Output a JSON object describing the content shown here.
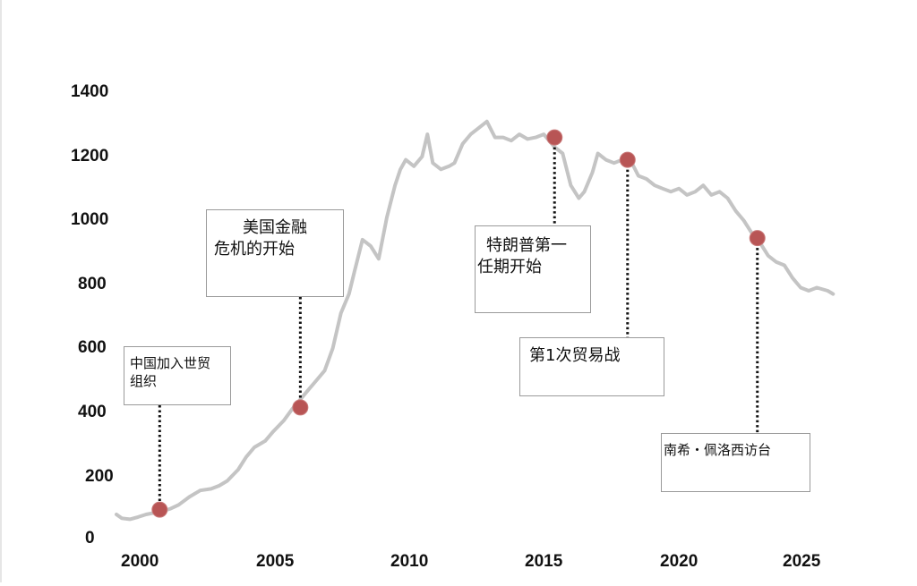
{
  "chart_data": {
    "type": "line",
    "title": "",
    "xlabel": "",
    "ylabel": "",
    "xlim": [
      1999.5,
      2026.0
    ],
    "ylim": [
      0,
      1400
    ],
    "x_ticks": [
      "2000",
      "2005",
      "2010",
      "2015",
      "2020",
      "2025"
    ],
    "y_ticks": [
      "0",
      "200",
      "400",
      "600",
      "800",
      "1000",
      "1200",
      "1400"
    ],
    "grid": false,
    "legend": "none",
    "line_color": "#c4c4c4",
    "marker_color": "#b85555",
    "series": [
      {
        "x": [
          1999.5,
          1999.7,
          2000.0,
          2000.3,
          2000.6,
          2000.9,
          2001.2,
          2001.5,
          2001.8,
          2002.2,
          2002.6,
          2003.0,
          2003.3,
          2003.6,
          2004.0,
          2004.3,
          2004.6,
          2005.0,
          2005.3,
          2005.7,
          2006.0,
          2006.3,
          2006.6,
          2006.9,
          2007.2,
          2007.5,
          2007.8,
          2008.1,
          2008.3,
          2008.6,
          2008.9,
          2009.2,
          2009.5,
          2009.8,
          2010.0,
          2010.2,
          2010.5,
          2010.8,
          2011.0,
          2011.2,
          2011.5,
          2011.8,
          2012.0,
          2012.3,
          2012.6,
          2012.9,
          2013.2,
          2013.5,
          2013.8,
          2014.1,
          2014.4,
          2014.7,
          2015.0,
          2015.3,
          2015.7,
          2016.0,
          2016.3,
          2016.6,
          2016.8,
          2017.1,
          2017.3,
          2017.6,
          2017.9,
          2018.2,
          2018.5,
          2018.8,
          2019.1,
          2019.4,
          2019.7,
          2020.0,
          2020.3,
          2020.6,
          2020.9,
          2021.2,
          2021.5,
          2021.8,
          2022.1,
          2022.4,
          2022.7,
          2023.0,
          2023.3,
          2023.6,
          2023.9,
          2024.2,
          2024.5,
          2024.8,
          2025.1,
          2025.4,
          2025.8,
          2026.0
        ],
        "y": [
          70,
          58,
          55,
          62,
          70,
          75,
          80,
          88,
          100,
          125,
          145,
          150,
          160,
          175,
          210,
          250,
          280,
          300,
          330,
          365,
          400,
          430,
          460,
          490,
          520,
          590,
          700,
          760,
          830,
          930,
          910,
          870,
          1000,
          1100,
          1150,
          1180,
          1160,
          1190,
          1260,
          1170,
          1150,
          1160,
          1170,
          1230,
          1260,
          1280,
          1300,
          1250,
          1250,
          1240,
          1260,
          1245,
          1250,
          1260,
          1220,
          1200,
          1100,
          1060,
          1080,
          1140,
          1200,
          1180,
          1170,
          1180,
          1180,
          1130,
          1120,
          1100,
          1090,
          1080,
          1090,
          1070,
          1080,
          1100,
          1070,
          1080,
          1060,
          1020,
          990,
          950,
          920,
          880,
          860,
          850,
          810,
          780,
          770,
          780,
          770,
          760
        ]
      }
    ],
    "annotations": [
      {
        "x": 2001.1,
        "y": 85,
        "text_lines": [
          "中国加入世贸",
          "组织"
        ]
      },
      {
        "x": 2006.3,
        "y": 405,
        "text_lines": [
          "美国金融",
          "危机的开始"
        ]
      },
      {
        "x": 2015.7,
        "y": 1250,
        "text_lines": [
          "特朗普第一",
          "任期开始"
        ]
      },
      {
        "x": 2018.4,
        "y": 1180,
        "text_lines": [
          "第1次贸易战"
        ]
      },
      {
        "x": 2023.2,
        "y": 935,
        "text_lines": [
          "南希・佩洛西访台"
        ]
      }
    ]
  }
}
